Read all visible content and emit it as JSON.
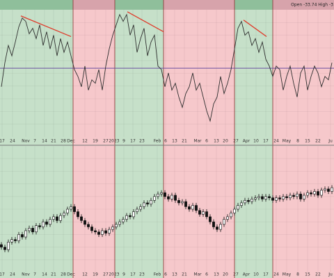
{
  "chart_data": [
    {
      "type": "line",
      "header": "Open -33.74 High -3",
      "x": [
        0,
        1,
        2,
        3,
        4,
        5,
        6,
        7,
        8,
        9,
        10,
        11,
        12,
        13,
        14,
        15,
        16,
        17,
        18,
        19,
        20,
        21,
        22,
        23,
        24,
        25,
        26,
        27,
        28,
        29,
        30,
        31,
        32,
        33,
        34,
        35,
        36,
        37,
        38,
        39,
        40,
        41,
        42,
        43,
        44,
        45,
        46,
        47,
        48,
        49,
        50,
        51,
        52,
        53,
        54,
        55,
        56,
        57,
        58,
        59,
        60,
        61,
        62,
        63,
        64,
        65,
        66,
        67,
        68,
        69,
        70,
        71,
        72,
        73,
        74,
        75,
        76,
        77,
        78,
        79,
        80,
        81,
        82,
        83,
        84,
        85,
        86,
        87,
        88,
        89,
        90,
        91,
        92,
        93,
        94,
        95
      ],
      "values": [
        -27,
        8,
        33,
        18,
        38,
        60,
        73,
        68,
        50,
        58,
        43,
        63,
        33,
        53,
        28,
        48,
        18,
        43,
        23,
        38,
        18,
        -2,
        -12,
        -27,
        3,
        -32,
        -17,
        -22,
        -2,
        -32,
        3,
        28,
        48,
        63,
        78,
        68,
        78,
        48,
        63,
        23,
        43,
        58,
        18,
        38,
        48,
        3,
        -2,
        -27,
        -7,
        -32,
        -22,
        -42,
        -57,
        -37,
        -27,
        -7,
        -32,
        -22,
        -42,
        -62,
        -77,
        -52,
        -42,
        -12,
        -37,
        -22,
        -2,
        28,
        58,
        68,
        48,
        53,
        33,
        43,
        23,
        38,
        13,
        3,
        -12,
        3,
        -2,
        -32,
        -12,
        3,
        -22,
        -42,
        -7,
        3,
        -32,
        -12,
        3,
        -7,
        -27,
        -12,
        -17,
        8
      ],
      "color": "#2e2e2e",
      "ylim": [
        -100,
        85
      ],
      "xlim": [
        -0.4,
        95.6
      ],
      "reference_line": {
        "value": 0,
        "color": "#6b4fa0"
      },
      "trendlines": [
        {
          "x": [
            5.6,
            20
          ],
          "y": [
            76,
            46
          ],
          "color": "#e03a2a"
        },
        {
          "x": [
            36.2,
            46.6
          ],
          "y": [
            82,
            53
          ],
          "color": "#e03a2a"
        },
        {
          "x": [
            69.6,
            76.2
          ],
          "y": [
            70,
            46
          ],
          "color": "#e03a2a"
        }
      ],
      "regions": [
        {
          "from": -0.4,
          "to": 20.6,
          "color": "#c6e0c9",
          "header_color": "#8fbf9b"
        },
        {
          "from": 20.6,
          "to": 32.6,
          "color": "#f6c8cb",
          "header_color": "#d7a3ab"
        },
        {
          "from": 32.6,
          "to": 46.6,
          "color": "#c6e0c9",
          "header_color": "#8fbf9b"
        },
        {
          "from": 46.6,
          "to": 67,
          "color": "#f6c8cb",
          "header_color": "#d7a3ab"
        },
        {
          "from": 67,
          "to": 78,
          "color": "#c6e0c9",
          "header_color": "#8fbf9b"
        },
        {
          "from": 78,
          "to": 95.6,
          "color": "#f6c8cb",
          "header_color": "#d7a3ab"
        }
      ],
      "grid": true,
      "xticks": [
        {
          "value": 0.2,
          "label": "17"
        },
        {
          "value": 3.2,
          "label": "24"
        },
        {
          "value": 7,
          "label": "Nov"
        },
        {
          "value": 9.6,
          "label": "7"
        },
        {
          "value": 12.4,
          "label": "14"
        },
        {
          "value": 15,
          "label": "21"
        },
        {
          "value": 17.8,
          "label": "28"
        },
        {
          "value": 20,
          "label": "Dec"
        },
        {
          "value": 24,
          "label": "12"
        },
        {
          "value": 27,
          "label": "19"
        },
        {
          "value": 30,
          "label": "27"
        },
        {
          "value": 32.4,
          "label": "2023"
        },
        {
          "value": 35.2,
          "label": "9"
        },
        {
          "value": 37.8,
          "label": "17"
        },
        {
          "value": 40.4,
          "label": "23"
        },
        {
          "value": 44.8,
          "label": "Feb"
        },
        {
          "value": 47.2,
          "label": "6"
        },
        {
          "value": 49.8,
          "label": "13"
        },
        {
          "value": 52.6,
          "label": "21"
        },
        {
          "value": 56.4,
          "label": "Mar"
        },
        {
          "value": 59,
          "label": "6"
        },
        {
          "value": 61.8,
          "label": "13"
        },
        {
          "value": 64.4,
          "label": "20"
        },
        {
          "value": 67.4,
          "label": "27"
        },
        {
          "value": 70.4,
          "label": "Apr"
        },
        {
          "value": 73.2,
          "label": "10"
        },
        {
          "value": 76,
          "label": "17"
        },
        {
          "value": 79,
          "label": "24"
        },
        {
          "value": 82,
          "label": "May"
        },
        {
          "value": 85.2,
          "label": "8"
        },
        {
          "value": 88,
          "label": "15"
        },
        {
          "value": 91,
          "label": "22"
        },
        {
          "value": 94.6,
          "label": "Ju"
        }
      ]
    },
    {
      "type": "candlestick",
      "x": [
        0,
        1,
        2,
        3,
        4,
        5,
        6,
        7,
        8,
        9,
        10,
        11,
        12,
        13,
        14,
        15,
        16,
        17,
        18,
        19,
        20,
        21,
        22,
        23,
        24,
        25,
        26,
        27,
        28,
        29,
        30,
        31,
        32,
        33,
        34,
        35,
        36,
        37,
        38,
        39,
        40,
        41,
        42,
        43,
        44,
        45,
        46,
        47,
        48,
        49,
        50,
        51,
        52,
        53,
        54,
        55,
        56,
        57,
        58,
        59,
        60,
        61,
        62,
        63,
        64,
        65,
        66,
        67,
        68,
        69,
        70,
        71,
        72,
        73,
        74,
        75,
        76,
        77,
        78,
        79,
        80,
        81,
        82,
        83,
        84,
        85,
        86,
        87,
        88,
        89,
        90,
        91,
        92,
        93,
        94,
        95
      ],
      "ohlc": [
        [
          22,
          24,
          18,
          20
        ],
        [
          20,
          22,
          16,
          18
        ],
        [
          18,
          26,
          16,
          24
        ],
        [
          24,
          28,
          22,
          26
        ],
        [
          26,
          28,
          23,
          25
        ],
        [
          25,
          32,
          23,
          30
        ],
        [
          30,
          32,
          26,
          28
        ],
        [
          28,
          35,
          26,
          33
        ],
        [
          33,
          37,
          31,
          35
        ],
        [
          35,
          37,
          30,
          32
        ],
        [
          32,
          39,
          30,
          37
        ],
        [
          37,
          39,
          34,
          36
        ],
        [
          36,
          42,
          34,
          40
        ],
        [
          40,
          42,
          36,
          38
        ],
        [
          38,
          44,
          36,
          42
        ],
        [
          42,
          46,
          40,
          44
        ],
        [
          44,
          46,
          39,
          41
        ],
        [
          41,
          47,
          39,
          45
        ],
        [
          45,
          49,
          43,
          47
        ],
        [
          47,
          52,
          45,
          50
        ],
        [
          50,
          54,
          48,
          52
        ],
        [
          52,
          54,
          46,
          48
        ],
        [
          48,
          50,
          42,
          44
        ],
        [
          44,
          46,
          39,
          41
        ],
        [
          41,
          43,
          36,
          38
        ],
        [
          38,
          40,
          34,
          36
        ],
        [
          36,
          38,
          31,
          33
        ],
        [
          33,
          35,
          30,
          32
        ],
        [
          32,
          34,
          28,
          30
        ],
        [
          30,
          35,
          28,
          33
        ],
        [
          33,
          35,
          29,
          31
        ],
        [
          31,
          36,
          29,
          34
        ],
        [
          34,
          38,
          32,
          36
        ],
        [
          36,
          40,
          34,
          38
        ],
        [
          38,
          42,
          36,
          40
        ],
        [
          40,
          44,
          38,
          42
        ],
        [
          42,
          47,
          40,
          45
        ],
        [
          45,
          47,
          42,
          44
        ],
        [
          44,
          50,
          42,
          48
        ],
        [
          48,
          52,
          46,
          50
        ],
        [
          50,
          54,
          48,
          52
        ],
        [
          52,
          57,
          50,
          55
        ],
        [
          55,
          57,
          52,
          54
        ],
        [
          54,
          59,
          52,
          57
        ],
        [
          57,
          62,
          55,
          60
        ],
        [
          60,
          64,
          58,
          62
        ],
        [
          62,
          65,
          60,
          63
        ],
        [
          63,
          65,
          58,
          60
        ],
        [
          60,
          62,
          56,
          58
        ],
        [
          58,
          63,
          56,
          61
        ],
        [
          61,
          63,
          55,
          57
        ],
        [
          57,
          59,
          53,
          55
        ],
        [
          55,
          58,
          53,
          56
        ],
        [
          56,
          58,
          50,
          52
        ],
        [
          52,
          54,
          48,
          50
        ],
        [
          50,
          55,
          48,
          53
        ],
        [
          53,
          55,
          47,
          49
        ],
        [
          49,
          51,
          44,
          46
        ],
        [
          46,
          50,
          44,
          48
        ],
        [
          48,
          50,
          42,
          44
        ],
        [
          44,
          46,
          38,
          40
        ],
        [
          40,
          42,
          34,
          36
        ],
        [
          36,
          38,
          32,
          34
        ],
        [
          34,
          40,
          32,
          38
        ],
        [
          38,
          44,
          36,
          42
        ],
        [
          42,
          46,
          40,
          44
        ],
        [
          44,
          49,
          42,
          47
        ],
        [
          47,
          52,
          45,
          50
        ],
        [
          50,
          55,
          48,
          53
        ],
        [
          53,
          57,
          51,
          55
        ],
        [
          55,
          59,
          53,
          57
        ],
        [
          57,
          59,
          54,
          56
        ],
        [
          56,
          60,
          54,
          58
        ],
        [
          58,
          61,
          56,
          59
        ],
        [
          59,
          62,
          57,
          60
        ],
        [
          60,
          62,
          56,
          58
        ],
        [
          58,
          62,
          56,
          60
        ],
        [
          60,
          62,
          57,
          59
        ],
        [
          59,
          61,
          55,
          57
        ],
        [
          57,
          61,
          55,
          59
        ],
        [
          59,
          61,
          56,
          58
        ],
        [
          58,
          62,
          56,
          60
        ],
        [
          60,
          62,
          57,
          59
        ],
        [
          59,
          63,
          57,
          61
        ],
        [
          61,
          63,
          58,
          60
        ],
        [
          60,
          64,
          58,
          62
        ],
        [
          62,
          64,
          56,
          58
        ],
        [
          58,
          63,
          56,
          61
        ],
        [
          61,
          65,
          59,
          63
        ],
        [
          63,
          65,
          60,
          62
        ],
        [
          62,
          66,
          60,
          64
        ],
        [
          64,
          66,
          59,
          61
        ],
        [
          61,
          67,
          59,
          65
        ],
        [
          65,
          68,
          63,
          66
        ],
        [
          66,
          68,
          62,
          64
        ],
        [
          64,
          69,
          62,
          67
        ]
      ],
      "up_color": "#ffffff",
      "down_color": "#111111",
      "ylim": [
        0,
        100
      ],
      "xlim": [
        -0.4,
        95.6
      ],
      "regions": [
        {
          "from": -0.4,
          "to": 20.6,
          "color": "#c6e0c9"
        },
        {
          "from": 20.6,
          "to": 32.6,
          "color": "#f6c8cb"
        },
        {
          "from": 32.6,
          "to": 46.6,
          "color": "#c6e0c9"
        },
        {
          "from": 46.6,
          "to": 67,
          "color": "#f6c8cb"
        },
        {
          "from": 67,
          "to": 78,
          "color": "#c6e0c9"
        },
        {
          "from": 78,
          "to": 95.6,
          "color": "#f6c8cb"
        }
      ],
      "grid": true,
      "xticks": [
        {
          "value": 0.2,
          "label": "17"
        },
        {
          "value": 3.2,
          "label": "24"
        },
        {
          "value": 7,
          "label": "Nov"
        },
        {
          "value": 9.6,
          "label": "7"
        },
        {
          "value": 12.4,
          "label": "14"
        },
        {
          "value": 15,
          "label": "21"
        },
        {
          "value": 17.8,
          "label": "28"
        },
        {
          "value": 20,
          "label": "Dec"
        },
        {
          "value": 24,
          "label": "12"
        },
        {
          "value": 27,
          "label": "19"
        },
        {
          "value": 30,
          "label": "27"
        },
        {
          "value": 32.4,
          "label": "2023"
        },
        {
          "value": 35.2,
          "label": "9"
        },
        {
          "value": 37.8,
          "label": "17"
        },
        {
          "value": 40.4,
          "label": "23"
        },
        {
          "value": 44.8,
          "label": "Feb"
        },
        {
          "value": 47.2,
          "label": "6"
        },
        {
          "value": 49.8,
          "label": "13"
        },
        {
          "value": 52.6,
          "label": "21"
        },
        {
          "value": 56.4,
          "label": "Mar"
        },
        {
          "value": 59,
          "label": "6"
        },
        {
          "value": 61.8,
          "label": "13"
        },
        {
          "value": 64.4,
          "label": "20"
        },
        {
          "value": 67.4,
          "label": "27"
        },
        {
          "value": 70.4,
          "label": "Apr"
        },
        {
          "value": 73.2,
          "label": "10"
        },
        {
          "value": 76,
          "label": "17"
        },
        {
          "value": 79,
          "label": "24"
        },
        {
          "value": 82,
          "label": "May"
        },
        {
          "value": 85.2,
          "label": "8"
        },
        {
          "value": 88,
          "label": "15"
        },
        {
          "value": 91,
          "label": "22"
        },
        {
          "value": 94.6,
          "label": "Ju"
        }
      ]
    }
  ]
}
